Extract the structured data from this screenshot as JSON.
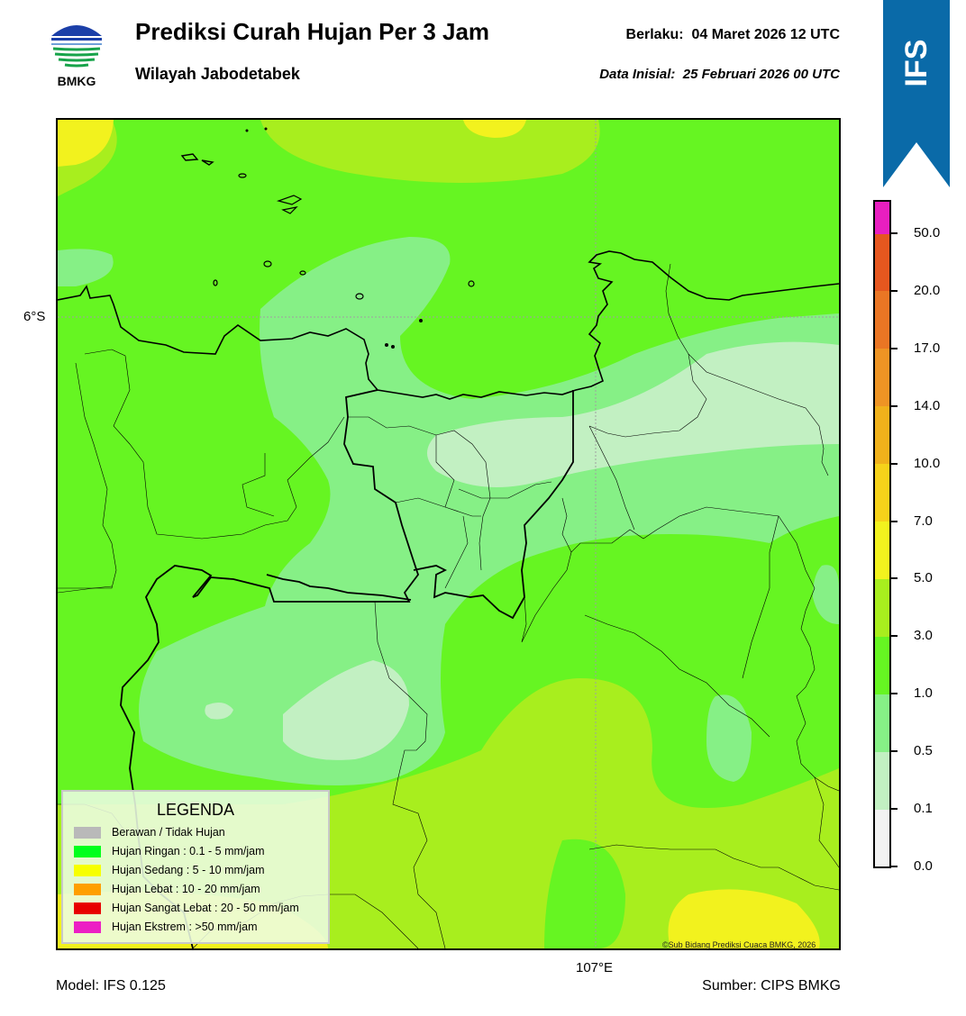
{
  "header": {
    "logo_text": "BMKG",
    "title": "Prediksi Curah Hujan Per 3 Jam",
    "subtitle": "Wilayah Jabodetabek",
    "valid_label": "Berlaku:",
    "valid_value": "04 Maret 2026 12 UTC",
    "init_label": "Data Inisial:",
    "init_value": "25 Februari 2026 00 UTC"
  },
  "ribbon": {
    "text": "IFS",
    "color": "#0a6aa8"
  },
  "map": {
    "lat_label": "6°S",
    "lon_label": "107°E",
    "copyright": "©Sub Bidang Prediksi Cuaca BMKG, 2026"
  },
  "legend": {
    "title": "LEGENDA",
    "items": [
      {
        "label": "Berawan / Tidak Hujan",
        "color": "#b9b9b9"
      },
      {
        "label": "Hujan Ringan : 0.1 - 5 mm/jam",
        "color": "#00ff1c"
      },
      {
        "label": "Hujan Sedang : 5 - 10 mm/jam",
        "color": "#f7ff00"
      },
      {
        "label": "Hujan Lebat : 10 - 20 mm/jam",
        "color": "#ff9f00"
      },
      {
        "label": "Hujan Sangat Lebat : 20 - 50 mm/jam",
        "color": "#e80000"
      },
      {
        "label": "Hujan Ekstrem : >50 mm/jam",
        "color": "#ec1fc4"
      }
    ]
  },
  "colorbar": {
    "ticks": [
      "0.0",
      "0.1",
      "0.5",
      "1.0",
      "3.0",
      "5.0",
      "7.0",
      "10.0",
      "14.0",
      "17.0",
      "20.0",
      "50.0"
    ],
    "colors": [
      "#f2f2f2",
      "#c2f0c2",
      "#86f086",
      "#66f522",
      "#a8ee1e",
      "#f2f21e",
      "#f6d21a",
      "#f0b11b",
      "#ee9424",
      "#ea7624",
      "#e5571f",
      "#e42718",
      "#e81fc0"
    ]
  },
  "footer": {
    "model": "Model: IFS 0.125",
    "source": "Sumber: CIPS BMKG"
  }
}
